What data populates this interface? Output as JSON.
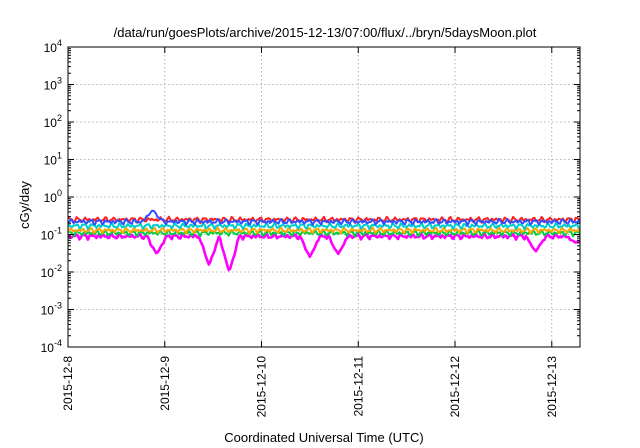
{
  "chart_data": {
    "type": "line",
    "title": "/data/run/goesPlots/archive/2015-12-13/07:00/flux/../bryn/5daysMoon.plot",
    "xlabel": "Coordinated Universal Time (UTC)",
    "ylabel": "cGy/day",
    "yscale": "log",
    "ylim": [
      0.0001,
      10000
    ],
    "y_ticks": [
      {
        "value": 0.0001,
        "base": "10",
        "exp": "-4"
      },
      {
        "value": 0.001,
        "base": "10",
        "exp": "-3"
      },
      {
        "value": 0.01,
        "base": "10",
        "exp": "-2"
      },
      {
        "value": 0.1,
        "base": "10",
        "exp": "-1"
      },
      {
        "value": 1,
        "base": "10",
        "exp": "0"
      },
      {
        "value": 10,
        "base": "10",
        "exp": "1"
      },
      {
        "value": 100,
        "base": "10",
        "exp": "2"
      },
      {
        "value": 1000,
        "base": "10",
        "exp": "3"
      },
      {
        "value": 10000,
        "base": "10",
        "exp": "4"
      }
    ],
    "xlim": [
      "2015-12-08T00:00",
      "2015-12-13T07:00"
    ],
    "x_ticks": [
      "2015-12-8",
      "2015-12-9",
      "2015-12-10",
      "2015-12-11",
      "2015-12-12",
      "2015-12-13"
    ],
    "grid": true,
    "series": [
      {
        "color": "#ff00ff",
        "typical": 0.09,
        "dips": [
          {
            "t": "2015-12-08T22:00",
            "v": 0.03
          },
          {
            "t": "2015-12-09T11:00",
            "v": 0.015
          },
          {
            "t": "2015-12-09T16:00",
            "v": 0.01
          },
          {
            "t": "2015-12-10T12:00",
            "v": 0.025
          },
          {
            "t": "2015-12-10T19:00",
            "v": 0.03
          },
          {
            "t": "2015-12-12T20:00",
            "v": 0.035
          },
          {
            "t": "2015-12-13T06:00",
            "v": 0.06
          }
        ]
      },
      {
        "color": "#00cc44",
        "typical": 0.11,
        "dips": []
      },
      {
        "color": "#ffa500",
        "typical": 0.13,
        "dips": []
      },
      {
        "color": "#00cccc",
        "typical": 0.17,
        "dips": []
      },
      {
        "color": "#ff2020",
        "typical": 0.25,
        "dips": []
      },
      {
        "color": "#3050ff",
        "typical": 0.22,
        "dips": [
          {
            "t": "2015-12-08T21:00",
            "v": 0.45
          }
        ]
      }
    ]
  }
}
